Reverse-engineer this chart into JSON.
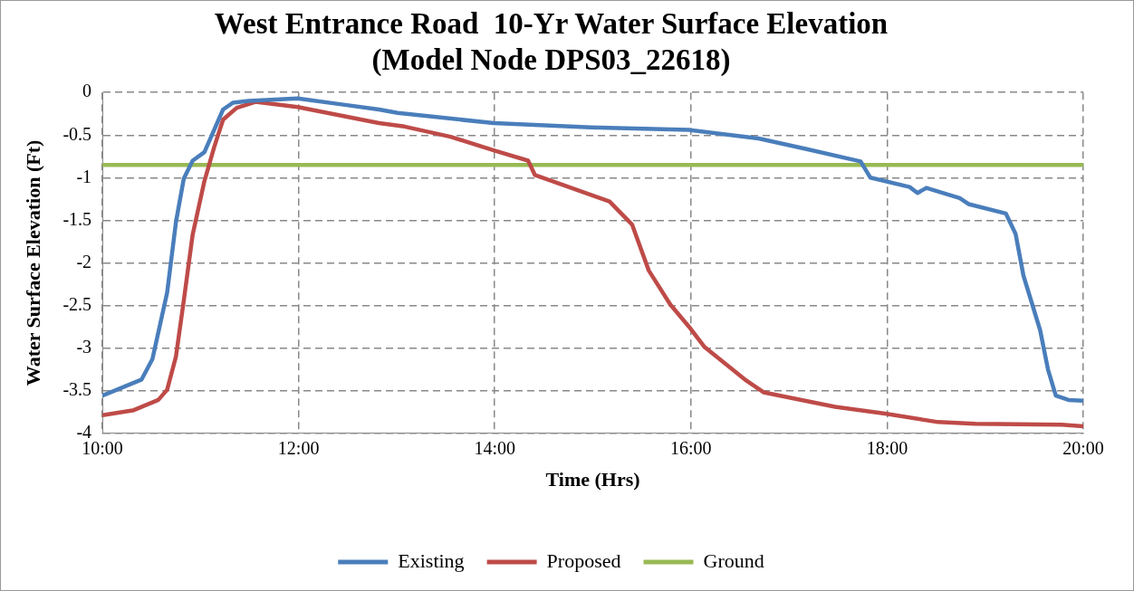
{
  "chart_data": {
    "type": "line",
    "title": "West Entrance Road  10-Yr Water Surface Elevation\n(Model Node DPS03_22618)",
    "xlabel": "Time (Hrs)",
    "ylabel": "Water Surface Elevation (Ft)",
    "xlim": [
      10,
      20
    ],
    "xticks": [
      {
        "value": 10,
        "label": "10:00"
      },
      {
        "value": 12,
        "label": "12:00"
      },
      {
        "value": 14,
        "label": "14:00"
      },
      {
        "value": 16,
        "label": "16:00"
      },
      {
        "value": 18,
        "label": "18:00"
      },
      {
        "value": 20,
        "label": "20:00"
      }
    ],
    "ylim": [
      -4,
      0
    ],
    "yticks": [
      -4,
      -3.5,
      -3,
      -2.5,
      -2,
      -1.5,
      -1,
      -0.5,
      0
    ],
    "grid": true,
    "legend": "bottom",
    "marker": "none",
    "line_style": "solid",
    "series": [
      {
        "name": "Existing",
        "color": "#4a7ebb",
        "x": [
          10.0,
          10.4,
          10.51,
          10.66,
          10.75,
          10.83,
          10.92,
          11.04,
          11.23,
          11.33,
          11.49,
          11.99,
          12.44,
          12.82,
          13.01,
          13.99,
          14.98,
          15.98,
          16.69,
          17.16,
          17.73,
          17.83,
          18.23,
          18.31,
          18.4,
          18.74,
          18.83,
          19.21,
          19.31,
          19.39,
          19.56,
          19.64,
          19.72,
          19.85,
          20.0
        ],
        "values": [
          -3.56,
          -3.37,
          -3.13,
          -2.35,
          -1.52,
          -1.01,
          -0.8,
          -0.7,
          -0.2,
          -0.12,
          -0.1,
          -0.07,
          -0.14,
          -0.2,
          -0.24,
          -0.36,
          -0.41,
          -0.44,
          -0.54,
          -0.66,
          -0.81,
          -1.0,
          -1.11,
          -1.18,
          -1.12,
          -1.24,
          -1.31,
          -1.42,
          -1.66,
          -2.15,
          -2.79,
          -3.25,
          -3.56,
          -3.61,
          -3.62
        ]
      },
      {
        "name": "Proposed",
        "color": "#be4b48",
        "x": [
          10.0,
          10.32,
          10.57,
          10.66,
          10.75,
          10.83,
          10.92,
          11.04,
          11.14,
          11.23,
          11.37,
          11.56,
          11.99,
          12.82,
          13.08,
          13.55,
          13.99,
          14.34,
          14.41,
          15.17,
          15.4,
          15.57,
          15.79,
          15.98,
          16.14,
          16.55,
          16.74,
          17.47,
          17.98,
          18.52,
          18.9,
          19.78,
          20.0
        ],
        "values": [
          -3.79,
          -3.73,
          -3.61,
          -3.49,
          -3.1,
          -2.44,
          -1.67,
          -1.04,
          -0.64,
          -0.32,
          -0.18,
          -0.11,
          -0.17,
          -0.36,
          -0.4,
          -0.52,
          -0.68,
          -0.8,
          -0.97,
          -1.28,
          -1.55,
          -2.09,
          -2.49,
          -2.75,
          -2.99,
          -3.37,
          -3.52,
          -3.69,
          -3.77,
          -3.87,
          -3.89,
          -3.9,
          -3.92
        ]
      },
      {
        "name": "Ground",
        "color": "#98b954",
        "x": [
          10,
          20
        ],
        "values": [
          -0.85,
          -0.85
        ]
      }
    ]
  }
}
